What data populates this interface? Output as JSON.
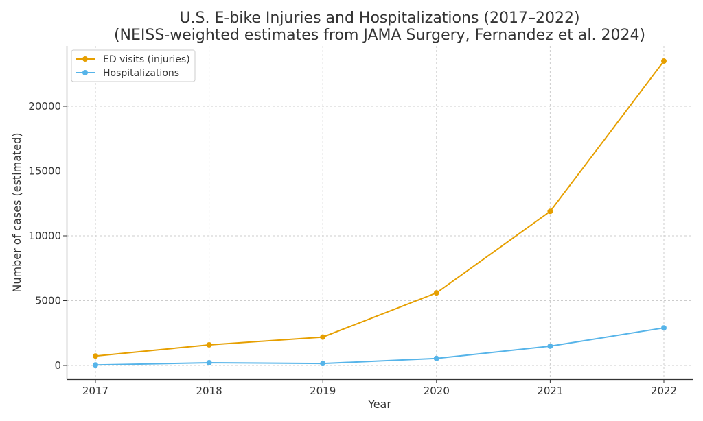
{
  "chart_data": {
    "type": "line",
    "title": "U.S. E-bike Injuries and Hospitalizations (2017–2022)",
    "subtitle": "(NEISS-weighted estimates from JAMA Surgery, Fernandez et al. 2024)",
    "xlabel": "Year",
    "ylabel": "Number of cases (estimated)",
    "x": [
      2017,
      2018,
      2019,
      2020,
      2021,
      2022
    ],
    "x_ticks": [
      "2017",
      "2018",
      "2019",
      "2020",
      "2021",
      "2022"
    ],
    "y_ticks": [
      "0",
      "5000",
      "10000",
      "15000",
      "20000"
    ],
    "ylim": [
      -1100,
      24600
    ],
    "xlim": [
      2016.75,
      2022.25
    ],
    "grid": true,
    "legend_position": "top-left",
    "series": [
      {
        "name": "ED visits (injuries)",
        "color": "#E69F00",
        "values": [
          730,
          1590,
          2190,
          5600,
          11890,
          23490
        ]
      },
      {
        "name": "Hospitalizations",
        "color": "#56B4E9",
        "values": [
          40,
          210,
          150,
          540,
          1490,
          2900
        ]
      }
    ]
  }
}
